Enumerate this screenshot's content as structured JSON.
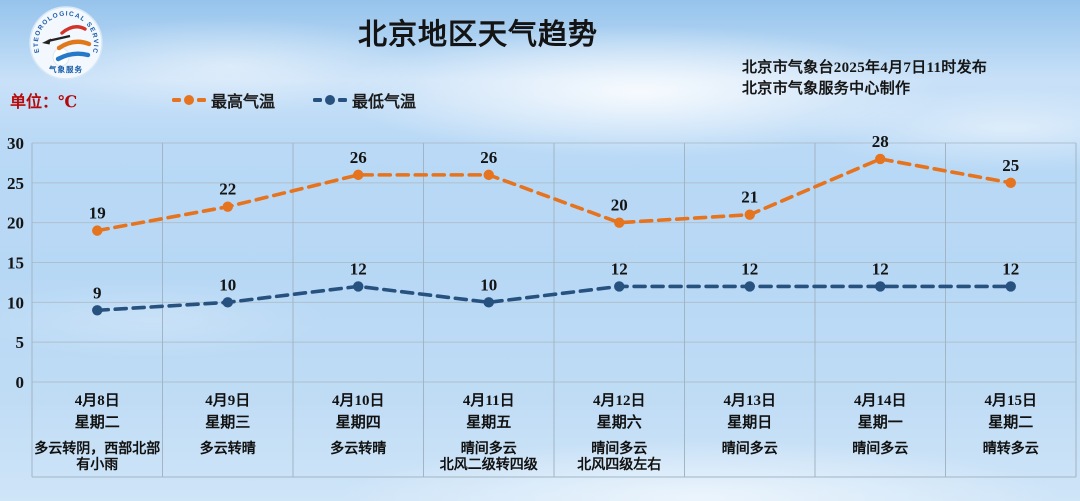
{
  "header": {
    "title": "北京地区天气趋势",
    "unit_label": "单位：℃",
    "issued_line1": "北京市气象台2025年4月7日11时发布",
    "issued_line2": "北京市气象服务中心制作"
  },
  "logo": {
    "name": "meteorological-service-logo",
    "arc_text_top": "METEOROLOGICAL SERVICE",
    "arc_text_bottom": "气象服务"
  },
  "legend": {
    "items": [
      {
        "label": "最高气温",
        "color": "#E6731E"
      },
      {
        "label": "最低气温",
        "color": "#27517E"
      }
    ]
  },
  "chart_data": {
    "type": "line",
    "title": "北京地区天气趋势",
    "categories": [
      "4月8日",
      "4月9日",
      "4月10日",
      "4月11日",
      "4月12日",
      "4月13日",
      "4月14日",
      "4月15日"
    ],
    "weekdays": [
      "星期二",
      "星期三",
      "星期四",
      "星期五",
      "星期六",
      "星期日",
      "星期一",
      "星期二"
    ],
    "weather": [
      "多云转阴，西部北部有小雨",
      "多云转晴",
      "多云转晴",
      "晴间多云\n北风二级转四级",
      "晴间多云\n北风四级左右",
      "晴间多云",
      "晴间多云",
      "晴转多云"
    ],
    "series": [
      {
        "name": "最高气温",
        "color": "#E6731E",
        "values": [
          19,
          22,
          26,
          26,
          20,
          21,
          28,
          25
        ]
      },
      {
        "name": "最低气温",
        "color": "#27517E",
        "values": [
          9,
          10,
          12,
          10,
          12,
          12,
          12,
          12
        ]
      }
    ],
    "xlabel": "",
    "ylabel": "单位：℃",
    "ylim": [
      0,
      30
    ],
    "ytick_step": 5,
    "grid": true,
    "legend_position": "top",
    "line_style": "dashed"
  }
}
